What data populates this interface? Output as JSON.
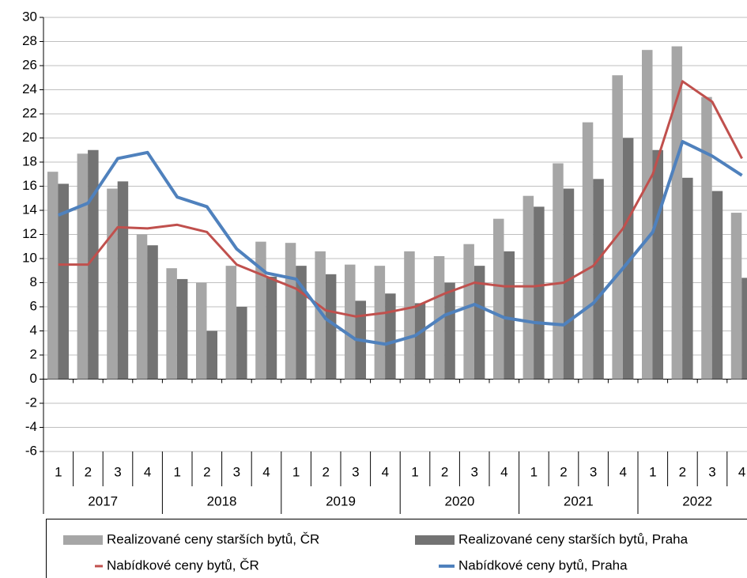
{
  "chart_data": {
    "type": "bar_line",
    "categories": [
      "1",
      "2",
      "3",
      "4",
      "1",
      "2",
      "3",
      "4",
      "1",
      "2",
      "3",
      "4",
      "1",
      "2",
      "3",
      "4",
      "1",
      "2",
      "3",
      "4",
      "1",
      "2",
      "3",
      "4"
    ],
    "year_labels": [
      "2017",
      "2018",
      "2019",
      "2020",
      "2021",
      "2022"
    ],
    "series": [
      {
        "name": "Realizované ceny starších bytů, ČR",
        "kind": "bar",
        "color": "#a6a6a6",
        "values": [
          17.2,
          18.7,
          15.8,
          12.0,
          9.2,
          8.0,
          9.4,
          11.4,
          11.3,
          10.6,
          9.5,
          9.4,
          10.6,
          10.2,
          11.2,
          13.3,
          15.2,
          17.9,
          21.3,
          25.2,
          27.3,
          27.6,
          23.4,
          13.8
        ]
      },
      {
        "name": "Realizované ceny starších bytů, Praha",
        "kind": "bar",
        "color": "#737373",
        "values": [
          16.2,
          19.0,
          16.4,
          11.1,
          8.3,
          4.0,
          6.0,
          8.5,
          9.4,
          8.7,
          6.5,
          7.1,
          6.3,
          8.0,
          9.4,
          10.6,
          14.3,
          15.8,
          16.6,
          20.0,
          19.0,
          16.7,
          15.6,
          8.4
        ]
      },
      {
        "name": "Nabídkové ceny bytů, ČR",
        "kind": "line",
        "color": "#c0504d",
        "values": [
          9.5,
          9.5,
          12.6,
          12.5,
          12.8,
          12.2,
          9.5,
          8.5,
          7.5,
          5.7,
          5.2,
          5.5,
          6.0,
          7.1,
          8.0,
          7.7,
          7.7,
          8.0,
          9.4,
          12.5,
          17.0,
          24.7,
          23.0,
          18.3
        ]
      },
      {
        "name": "Nabídkové ceny bytů, Praha",
        "kind": "line",
        "color": "#4f81bd",
        "values": [
          13.6,
          14.6,
          18.3,
          18.8,
          15.1,
          14.3,
          10.8,
          8.8,
          8.3,
          5.0,
          3.3,
          2.9,
          3.6,
          5.3,
          6.2,
          5.1,
          4.7,
          4.5,
          6.3,
          9.2,
          12.2,
          19.7,
          18.5,
          16.9
        ]
      }
    ],
    "ylim": [
      -6,
      30
    ],
    "yticks": [
      -6,
      -4,
      -2,
      0,
      2,
      4,
      6,
      8,
      10,
      12,
      14,
      16,
      18,
      20,
      22,
      24,
      26,
      28,
      30
    ],
    "grid": true
  }
}
